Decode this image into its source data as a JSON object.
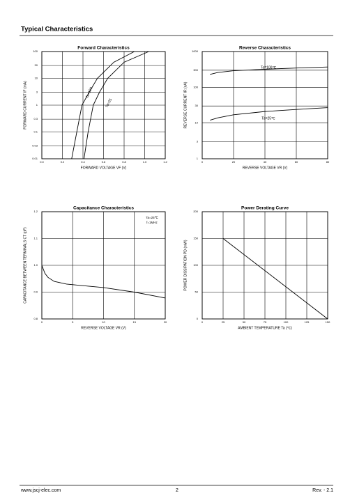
{
  "header": {
    "title": "Typical Characteristics"
  },
  "chart_data": [
    {
      "type": "line",
      "title": "Forward   Characteristics",
      "x_label": "FORWARD VOLTAGE   VF   (V)",
      "y_label": "FORWARD CURRENT   IF   (mA)",
      "ylog": true,
      "grid": true,
      "xlim": [
        0,
        1.2
      ],
      "xticks": [
        {
          "value": 0,
          "label": "0.0"
        },
        0.2,
        0.4,
        0.6,
        0.8,
        {
          "value": 1,
          "label": "1.0"
        },
        1.2
      ],
      "ylim": [
        0.01,
        100
      ],
      "yticks": [
        0.01,
        0.03,
        0.1,
        0.3,
        1,
        3,
        10,
        30,
        100
      ],
      "series": [
        {
          "name": "Ta=100",
          "color": "#000000",
          "x": [
            0.29,
            0.34,
            0.39,
            0.46,
            0.54,
            0.7,
            0.9
          ],
          "values": [
            0.01,
            0.1,
            1,
            3,
            10,
            40,
            100
          ]
        },
        {
          "name": "Ta=25",
          "color": "#000000",
          "x": [
            0.41,
            0.45,
            0.5,
            0.56,
            0.64,
            0.8,
            1.04
          ],
          "values": [
            0.01,
            0.1,
            1,
            3,
            10,
            40,
            100
          ]
        }
      ]
    },
    {
      "type": "line",
      "title": "Reverse   Characteristics",
      "x_label": "REVERSE VOLTAGE   VR   (V)",
      "y_label": "REVERSE CURRENT   IR   (nA)",
      "ylog": true,
      "grid": true,
      "xlim": [
        0,
        80
      ],
      "xticks": [
        0,
        20,
        40,
        60,
        80
      ],
      "ylim": [
        1,
        1000
      ],
      "yticks": [
        1,
        3,
        10,
        30,
        100,
        300,
        1000
      ],
      "series": [
        {
          "name": "Ta=100℃",
          "color": "#000000",
          "x": [
            5,
            10,
            20,
            40,
            60,
            80
          ],
          "values": [
            230,
            260,
            290,
            320,
            345,
            370
          ]
        },
        {
          "name": "Ta=25℃",
          "color": "#000000",
          "x": [
            5,
            10,
            20,
            40,
            60,
            80
          ],
          "values": [
            12,
            14,
            17,
            21,
            24,
            27
          ]
        }
      ]
    },
    {
      "type": "line",
      "title": "Capacitance Characteristics",
      "x_label": "REVERSE VOLTAGE   VR   (V)",
      "y_label": "CAPACITANCE BETWEEN TERMINALS   CT   (pF)",
      "grid": true,
      "annotations": [
        "Ta=25℃",
        "f=1MHz"
      ],
      "xlim": [
        0,
        20
      ],
      "xticks": [
        0,
        5,
        10,
        15,
        20
      ],
      "ylim": [
        0.8,
        1.2
      ],
      "yticks": [
        0.8,
        0.9,
        {
          "value": 1,
          "label": "1.0"
        },
        1.1,
        1.2
      ],
      "series": [
        {
          "color": "#000000",
          "x": [
            0,
            0.5,
            1,
            2,
            4,
            10,
            15,
            20
          ],
          "values": [
            1.0,
            0.97,
            0.955,
            0.94,
            0.93,
            0.917,
            0.9,
            0.878
          ]
        }
      ]
    },
    {
      "type": "line",
      "title": "Power Derating Curve",
      "x_label": "AMBIENT TEMPERATURE   Ta   (℃)",
      "y_label": "POWER DISSIPATION   PD   (mW)",
      "grid": true,
      "xlim": [
        0,
        150
      ],
      "xticks": [
        0,
        25,
        50,
        75,
        100,
        125,
        150
      ],
      "ylim": [
        0,
        200
      ],
      "yticks": [
        0,
        50,
        100,
        150,
        200
      ],
      "series": [
        {
          "color": "#000000",
          "x": [
            25,
            150
          ],
          "values": [
            150,
            0
          ]
        }
      ]
    }
  ],
  "footer": {
    "website": "www.jscj-elec.com",
    "page": 2,
    "revision": "Rev. - 2.1"
  }
}
